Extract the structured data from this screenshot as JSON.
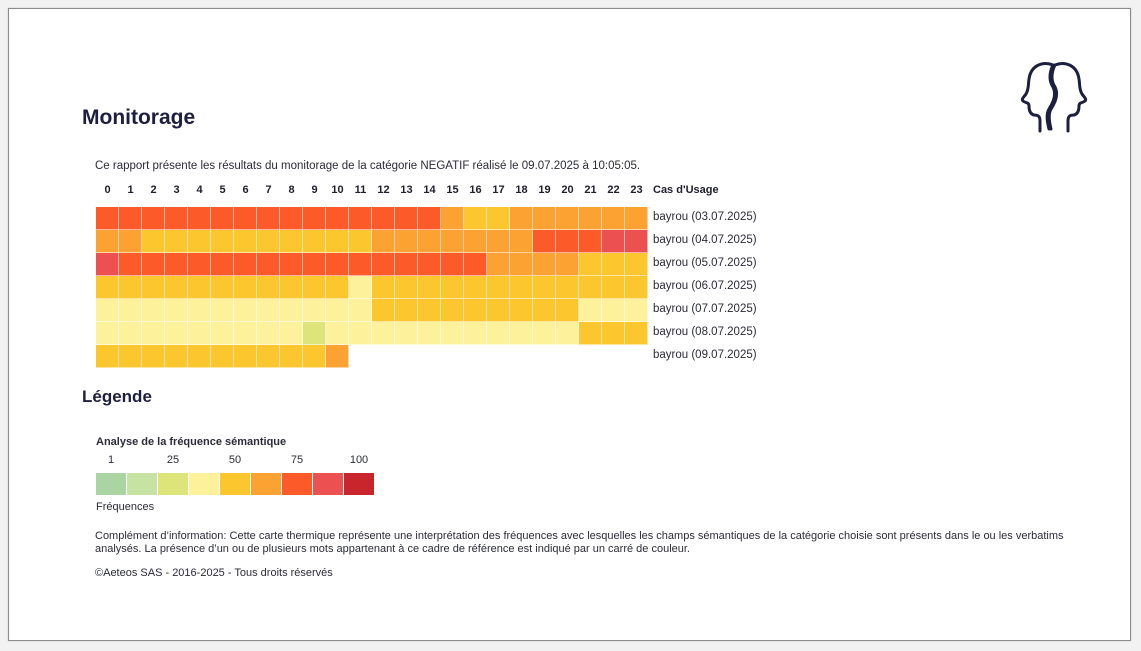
{
  "title": "Monitorage",
  "intro": "Ce rapport présente les résultats du monitorage de la catégorie NEGATIF réalisé le 09.07.2025 à 10:05:05.",
  "logo_icon": "two-heads-profile-icon",
  "column_title": "Cas d'Usage",
  "hours": [
    "0",
    "1",
    "2",
    "3",
    "4",
    "5",
    "6",
    "7",
    "8",
    "9",
    "10",
    "11",
    "12",
    "13",
    "14",
    "15",
    "16",
    "17",
    "18",
    "19",
    "20",
    "21",
    "22",
    "23"
  ],
  "palette": {
    "1": "#a8d5a2",
    "2": "#c6e3a4",
    "3": "#dde57a",
    "4": "#fdf19c",
    "5": "#fcc62f",
    "6": "#fba232",
    "7": "#fd5a2a",
    "8": "#ec5050",
    "9": "#c8262c"
  },
  "chart_data": {
    "type": "heatmap",
    "x": [
      "0",
      "1",
      "2",
      "3",
      "4",
      "5",
      "6",
      "7",
      "8",
      "9",
      "10",
      "11",
      "12",
      "13",
      "14",
      "15",
      "16",
      "17",
      "18",
      "19",
      "20",
      "21",
      "22",
      "23"
    ],
    "rows": [
      {
        "label": "bayrou (03.07.2025)",
        "levels": [
          7,
          7,
          7,
          7,
          7,
          7,
          7,
          7,
          7,
          7,
          7,
          7,
          7,
          7,
          7,
          6,
          5,
          5,
          6,
          6,
          6,
          6,
          6,
          6
        ]
      },
      {
        "label": "bayrou (04.07.2025)",
        "levels": [
          6,
          6,
          5,
          5,
          5,
          5,
          5,
          5,
          5,
          5,
          5,
          5,
          6,
          6,
          6,
          6,
          6,
          6,
          6,
          7,
          7,
          7,
          8,
          8
        ]
      },
      {
        "label": "bayrou (05.07.2025)",
        "levels": [
          8,
          7,
          7,
          7,
          7,
          7,
          7,
          7,
          7,
          7,
          7,
          7,
          7,
          7,
          7,
          7,
          7,
          6,
          6,
          6,
          6,
          5,
          5,
          5
        ]
      },
      {
        "label": "bayrou (06.07.2025)",
        "levels": [
          5,
          5,
          5,
          5,
          5,
          5,
          5,
          5,
          5,
          5,
          5,
          4,
          5,
          5,
          5,
          5,
          5,
          5,
          5,
          5,
          5,
          5,
          5,
          5
        ]
      },
      {
        "label": "bayrou (07.07.2025)",
        "levels": [
          4,
          4,
          4,
          4,
          4,
          4,
          4,
          4,
          4,
          4,
          4,
          4,
          5,
          5,
          5,
          5,
          5,
          5,
          5,
          5,
          5,
          4,
          4,
          4
        ]
      },
      {
        "label": "bayrou (08.07.2025)",
        "levels": [
          4,
          4,
          4,
          4,
          4,
          4,
          4,
          4,
          4,
          3,
          4,
          4,
          4,
          4,
          4,
          4,
          4,
          4,
          4,
          4,
          4,
          5,
          5,
          5
        ]
      },
      {
        "label": "bayrou (09.07.2025)",
        "levels": [
          5,
          5,
          5,
          5,
          5,
          5,
          5,
          5,
          5,
          5,
          6
        ]
      }
    ]
  },
  "legend": {
    "title": "Légende",
    "subtitle": "Analyse de la fréquence sémantique",
    "ticks": [
      "1",
      "25",
      "50",
      "75",
      "100"
    ],
    "levels": [
      1,
      2,
      3,
      4,
      5,
      6,
      7,
      8,
      9
    ],
    "caption": "Fréquences"
  },
  "note": "Complément d’information: Cette carte thermique représente une interprétation des fréquences avec lesquelles les champs sémantiques de la catégorie choisie sont présents dans le ou les verbatims analysés. La présence d’un ou de plusieurs mots appartenant à ce cadre de référence est indiqué par un carré de couleur.",
  "copyright": "©Aeteos SAS - 2016-2025 - Tous droits réservés"
}
